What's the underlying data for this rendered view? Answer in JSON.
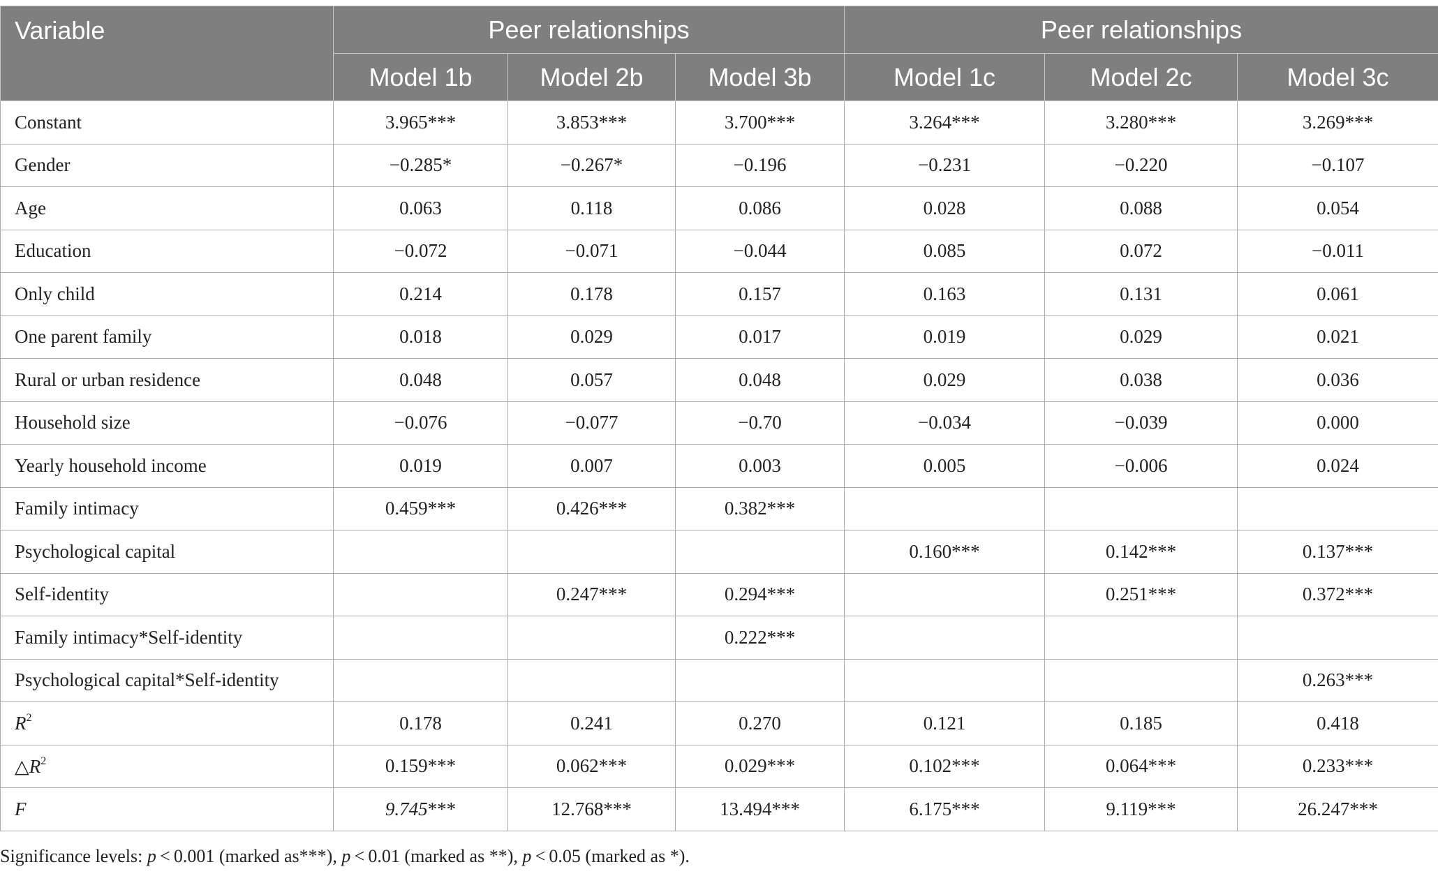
{
  "header": {
    "variable": "Variable",
    "groups": [
      "Peer relationships",
      "Peer relationships"
    ],
    "models": [
      "Model 1b",
      "Model 2b",
      "Model 3b",
      "Model 1c",
      "Model 2c",
      "Model 3c"
    ]
  },
  "rows": [
    {
      "label": "Constant",
      "values": [
        "3.965***",
        "3.853***",
        "3.700***",
        "3.264***",
        "3.280***",
        "3.269***"
      ]
    },
    {
      "label": "Gender",
      "values": [
        "−0.285*",
        "−0.267*",
        "−0.196",
        "−0.231",
        "−0.220",
        "−0.107"
      ]
    },
    {
      "label": "Age",
      "values": [
        "0.063",
        "0.118",
        "0.086",
        "0.028",
        "0.088",
        "0.054"
      ]
    },
    {
      "label": "Education",
      "values": [
        "−0.072",
        "−0.071",
        "−0.044",
        "0.085",
        "0.072",
        "−0.011"
      ]
    },
    {
      "label": "Only child",
      "values": [
        "0.214",
        "0.178",
        "0.157",
        "0.163",
        "0.131",
        "0.061"
      ]
    },
    {
      "label": "One parent family",
      "values": [
        "0.018",
        "0.029",
        "0.017",
        "0.019",
        "0.029",
        "0.021"
      ]
    },
    {
      "label": "Rural or urban residence",
      "values": [
        "0.048",
        "0.057",
        "0.048",
        "0.029",
        "0.038",
        "0.036"
      ]
    },
    {
      "label": "Household size",
      "values": [
        "−0.076",
        "−0.077",
        "−0.70",
        "−0.034",
        "−0.039",
        "0.000"
      ]
    },
    {
      "label": "Yearly household income",
      "values": [
        "0.019",
        "0.007",
        "0.003",
        "0.005",
        "−0.006",
        "0.024"
      ]
    },
    {
      "label": "Family intimacy",
      "values": [
        "0.459***",
        "0.426***",
        "0.382***",
        "",
        "",
        ""
      ]
    },
    {
      "label": "Psychological capital",
      "values": [
        "",
        "",
        "",
        "0.160***",
        "0.142***",
        "0.137***"
      ]
    },
    {
      "label": "Self-identity",
      "values": [
        "",
        "0.247***",
        "0.294***",
        "",
        "0.251***",
        "0.372***"
      ]
    },
    {
      "label": "Family intimacy*Self-identity",
      "values": [
        "",
        "",
        "0.222***",
        "",
        "",
        ""
      ]
    },
    {
      "label": "Psychological capital*Self-identity",
      "values": [
        "",
        "",
        "",
        "",
        "",
        "0.263***"
      ]
    }
  ],
  "stat_rows": {
    "r2": {
      "label": "R",
      "sup": "2",
      "values": [
        "0.178",
        "0.241",
        "0.270",
        "0.121",
        "0.185",
        "0.418"
      ]
    },
    "dr2": {
      "prefix": "△",
      "label": "R",
      "sup": "2",
      "values": [
        "0.159***",
        "0.062***",
        "0.029***",
        "0.102***",
        "0.064***",
        "0.233***"
      ]
    },
    "f": {
      "label": "F",
      "first_value": "9.745",
      "first_suffix": "***",
      "values": [
        "12.768***",
        "13.494***",
        "6.175***",
        "9.119***",
        "26.247***"
      ]
    }
  },
  "footnote": {
    "lead": "Significance levels: ",
    "p": "p",
    "part1": " < 0.001 (marked as***), ",
    "part2": " < 0.01 (marked as **), ",
    "part3": " < 0.05 (marked as *)."
  }
}
